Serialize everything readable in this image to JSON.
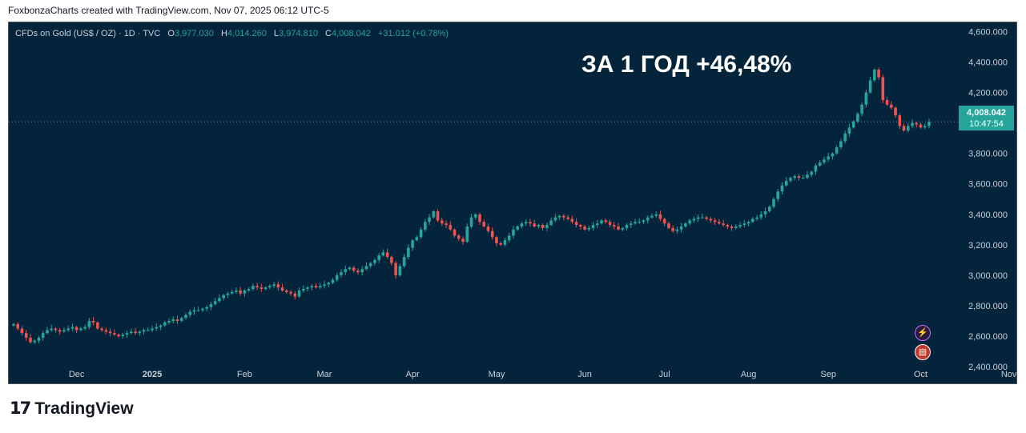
{
  "credit": "FoxbonzaCharts created with TradingView.com, Nov 07, 2025 06:12 UTC-5",
  "header": {
    "symbol": "CFDs on Gold (US$ / OZ) · 1D · TVC",
    "o_label": "O",
    "o_value": "3,977.030",
    "h_label": "H",
    "h_value": "4,014.260",
    "l_label": "L",
    "l_value": "3,974.810",
    "c_label": "C",
    "c_value": "4,008.042",
    "change": "+31.012 (+0.78%)"
  },
  "headline": "ЗА 1 ГОД +46,48%",
  "price_badge": {
    "price": "4,008.042",
    "countdown": "10:47:54"
  },
  "logo_text": "TradingView",
  "colors": {
    "background": "#03243a",
    "up": "#26a69a",
    "down": "#ef5350",
    "axis_text": "#c9d1d9"
  },
  "icons": [
    "tv-logo-icon",
    "lightning-icon",
    "us-flag-icon"
  ],
  "chart_data": {
    "type": "candlestick",
    "title": "CFDs on Gold (US$ / OZ) · 1D · TVC",
    "xlabel": "",
    "ylabel": "",
    "ylim": [
      2290,
      4660
    ],
    "yticks": [
      2400,
      2600,
      2800,
      3000,
      3200,
      3400,
      3600,
      3800,
      4000,
      4200,
      4400,
      4600
    ],
    "ytick_labels": [
      "2,400.000",
      "2,600.000",
      "2,800.000",
      "3,000.000",
      "3,200.000",
      "3,400.000",
      "3,600.000",
      "3,800.000",
      "4,000.000",
      "4,200.000",
      "4,400.000",
      "4,600.000"
    ],
    "xtick_labels": [
      "Dec",
      "2025",
      "Feb",
      "Mar",
      "Apr",
      "May",
      "Jun",
      "Jul",
      "Aug",
      "Sep",
      "Oct",
      "Nov"
    ],
    "xtick_index": [
      15,
      33,
      55,
      74,
      95,
      115,
      136,
      155,
      175,
      194,
      216,
      237
    ],
    "current_price": 4008.042,
    "grid": false,
    "series": [
      {
        "close": [
          2680,
          2650,
          2620,
          2590,
          2560,
          2570,
          2590,
          2620,
          2640,
          2650,
          2640,
          2630,
          2640,
          2650,
          2660,
          2640,
          2650,
          2660,
          2700,
          2690,
          2650,
          2640,
          2630,
          2620,
          2610,
          2600,
          2610,
          2620,
          2630,
          2620,
          2630,
          2640,
          2640,
          2650,
          2660,
          2670,
          2690,
          2700,
          2710,
          2700,
          2720,
          2740,
          2760,
          2770,
          2770,
          2780,
          2790,
          2810,
          2830,
          2850,
          2870,
          2880,
          2890,
          2900,
          2880,
          2900,
          2910,
          2930,
          2920,
          2910,
          2920,
          2930,
          2940,
          2920,
          2900,
          2890,
          2880,
          2860,
          2900,
          2910,
          2920,
          2930,
          2920,
          2930,
          2940,
          2950,
          2970,
          3000,
          3020,
          3040,
          3050,
          3030,
          3020,
          3040,
          3060,
          3080,
          3100,
          3130,
          3150,
          3120,
          3080,
          3000,
          3060,
          3120,
          3180,
          3230,
          3250,
          3300,
          3350,
          3380,
          3420,
          3360,
          3340,
          3330,
          3300,
          3260,
          3240,
          3220,
          3320,
          3380,
          3400,
          3350,
          3320,
          3290,
          3250,
          3210,
          3200,
          3230,
          3260,
          3300,
          3320,
          3340,
          3350,
          3340,
          3320,
          3330,
          3310,
          3330,
          3360,
          3380,
          3390,
          3380,
          3370,
          3350,
          3330,
          3320,
          3300,
          3310,
          3330,
          3340,
          3360,
          3350,
          3330,
          3320,
          3300,
          3310,
          3330,
          3340,
          3350,
          3350,
          3360,
          3380,
          3390,
          3400,
          3370,
          3340,
          3310,
          3290,
          3300,
          3320,
          3340,
          3360,
          3370,
          3380,
          3380,
          3370,
          3360,
          3350,
          3340,
          3330,
          3320,
          3310,
          3320,
          3330,
          3340,
          3350,
          3370,
          3380,
          3400,
          3420,
          3450,
          3500,
          3550,
          3590,
          3620,
          3640,
          3650,
          3640,
          3640,
          3660,
          3680,
          3720,
          3740,
          3760,
          3780,
          3800,
          3840,
          3880,
          3930,
          3970,
          4010,
          4060,
          4120,
          4200,
          4280,
          4350,
          4300,
          4150,
          4120,
          4100,
          4050,
          3980,
          3950,
          3980,
          4000,
          3990,
          3970,
          3980,
          4008
        ]
      }
    ]
  }
}
